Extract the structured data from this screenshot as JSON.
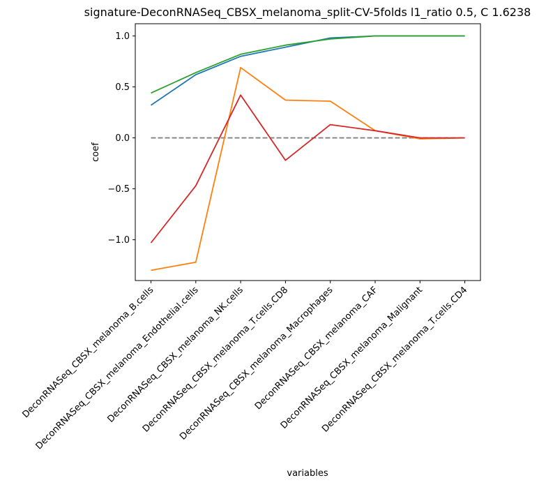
{
  "chart_data": {
    "type": "line",
    "title": "signature-DeconRNASeq_CBSX_melanoma_split-CV-5folds l1_ratio 0.5, C 1.6238",
    "xlabel": "variables",
    "ylabel": "coef",
    "ylim": [
      -1.4,
      1.12
    ],
    "yticks": [
      -1.0,
      -0.5,
      0.0,
      0.5,
      1.0
    ],
    "ytick_labels": [
      "−1.0",
      "−0.5",
      "0.0",
      "0.5",
      "1.0"
    ],
    "categories": [
      "DeconRNASeq_CBSX_melanoma_B.cells",
      "DeconRNASeq_CBSX_melanoma_Endothelial.cells",
      "DeconRNASeq_CBSX_melanoma_NK.cells",
      "DeconRNASeq_CBSX_melanoma_T.cells.CD8",
      "DeconRNASeq_CBSX_melanoma_Macrophages",
      "DeconRNASeq_CBSX_melanoma_CAF",
      "DeconRNASeq_CBSX_melanoma_Malignant",
      "DeconRNASeq_CBSX_melanoma_T.cells.CD4"
    ],
    "grid": false,
    "zero_line": {
      "y": 0,
      "style": "dashed",
      "color": "#808080"
    },
    "series": [
      {
        "color": "#1f77b4",
        "values": [
          0.32,
          0.62,
          0.8,
          0.89,
          0.98,
          1.0,
          1.0,
          1.0
        ]
      },
      {
        "color": "#ff7f0e",
        "values": [
          -1.3,
          -1.22,
          0.69,
          0.37,
          0.36,
          0.07,
          -0.01,
          0.0
        ]
      },
      {
        "color": "#2ca02c",
        "values": [
          0.44,
          0.64,
          0.82,
          0.91,
          0.97,
          1.0,
          1.0,
          1.0
        ]
      },
      {
        "color": "#d62728",
        "values": [
          -1.03,
          -0.47,
          0.42,
          -0.22,
          0.13,
          0.07,
          0.0,
          0.0
        ]
      }
    ]
  }
}
